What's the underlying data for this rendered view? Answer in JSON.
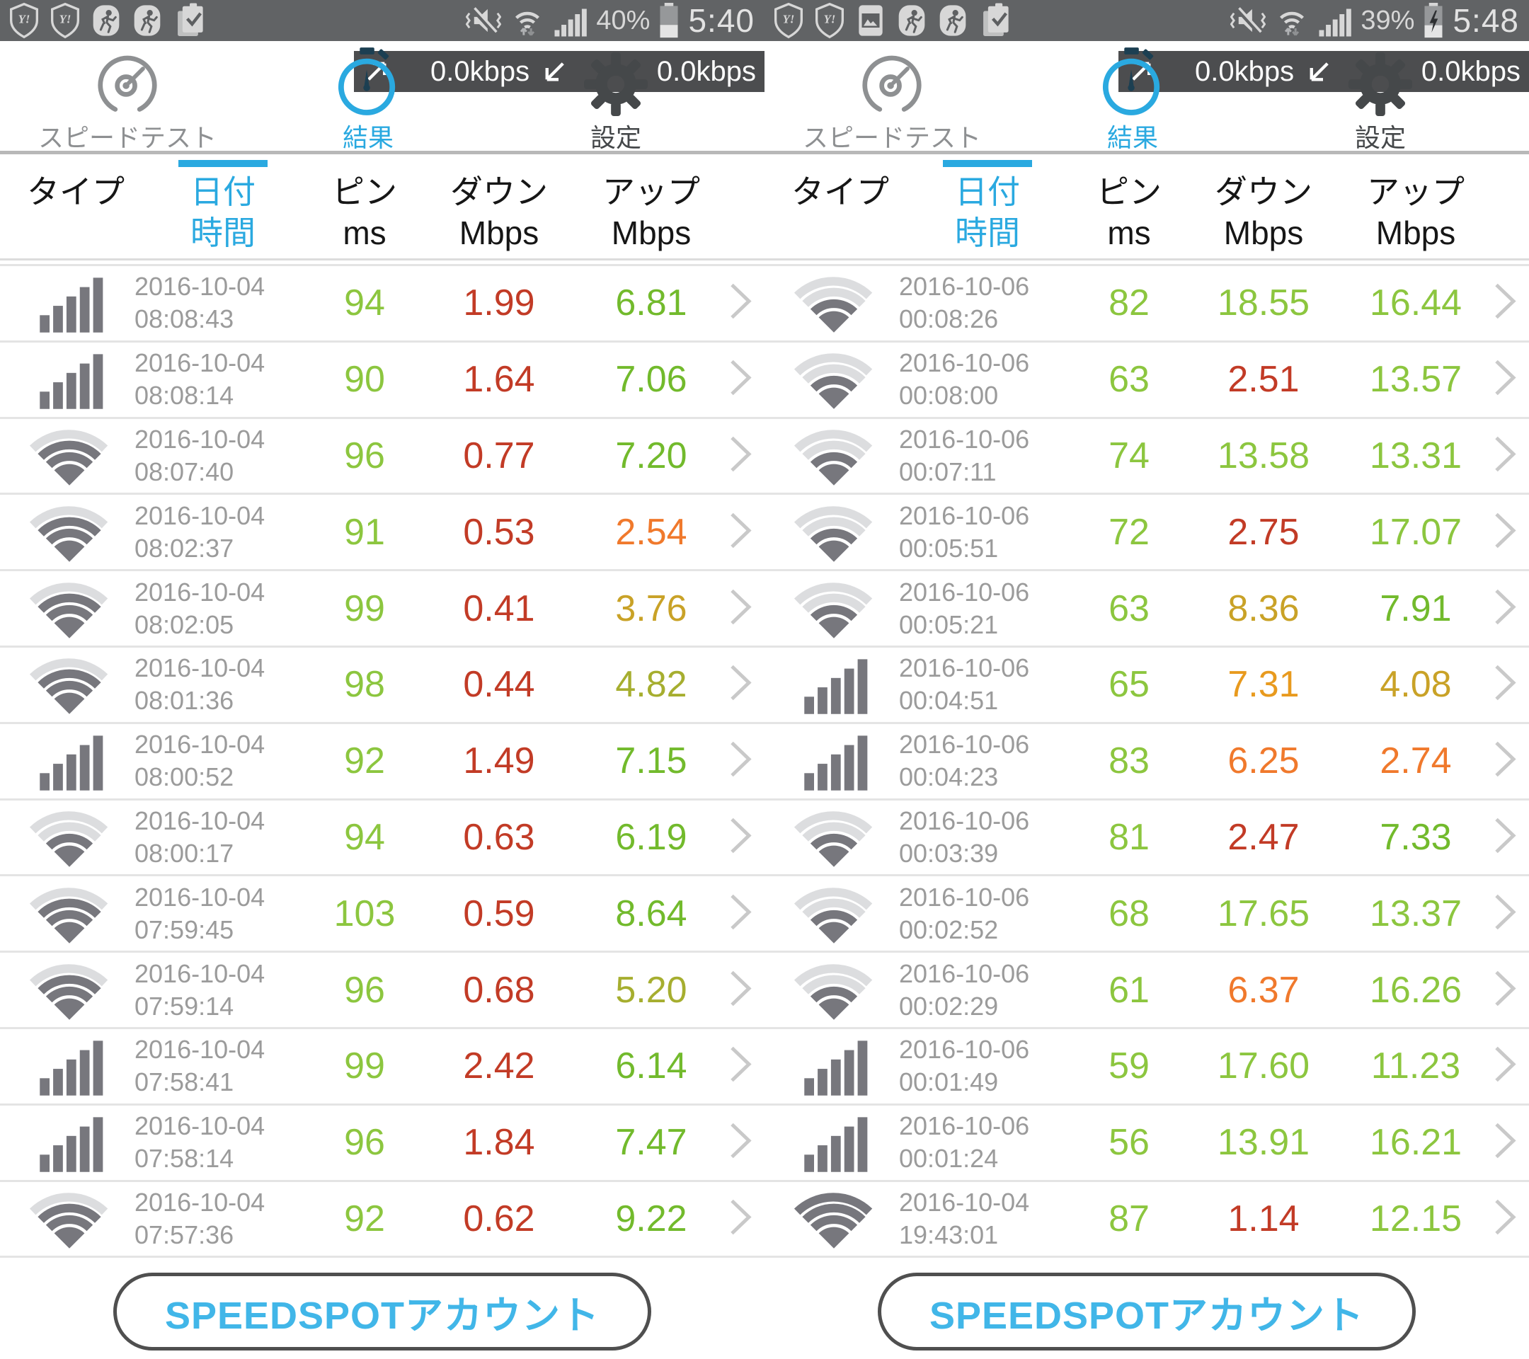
{
  "palette": {
    "red": "#c23b26",
    "orange": "#f0792c",
    "amber": "#e89a1e",
    "gold": "#c9a227",
    "olive": "#a6ae2f",
    "green": "#72ba2c",
    "lime": "#8cc63f",
    "blue": "#2aa9e0",
    "date_gray": "#9b9b9b",
    "icon_gray": "#77777d",
    "arc_light": "#dcdddf",
    "chevron_gray": "#c9c9c9",
    "statusbar_bg": "#616365",
    "overlay_bg": "#3e4042",
    "button_text": "#41b6e8"
  },
  "panels": [
    {
      "statusbar": {
        "left_icons": [
          "shield-y",
          "shield-y",
          "runner",
          "runner",
          "clipboard-check"
        ],
        "battery_pct": "40%",
        "battery_level": 0.4,
        "charging": false,
        "time": "5:40"
      },
      "tabs": [
        {
          "label": "スピードテスト",
          "active": false
        },
        {
          "label": "結果",
          "active": true
        },
        {
          "label": "設定",
          "active": false
        }
      ],
      "overlay": {
        "up": "0.0kbps",
        "down": "0.0kbps"
      },
      "columns": {
        "type": "タイプ",
        "date1": "日付",
        "date2": "時間",
        "ping1": "ピン",
        "ping2": "ms",
        "down1": "ダウン",
        "down2": "Mbps",
        "up1": "アップ",
        "up2": "Mbps"
      },
      "rows": [
        {
          "icon": "cell",
          "date": "2016-10-04",
          "time": "08:08:43",
          "ping": "94",
          "ping_color": "lime",
          "down": "1.99",
          "down_color": "red",
          "up": "6.81",
          "up_color": "green"
        },
        {
          "icon": "cell",
          "date": "2016-10-04",
          "time": "08:08:14",
          "ping": "90",
          "ping_color": "lime",
          "down": "1.64",
          "down_color": "red",
          "up": "7.06",
          "up_color": "green"
        },
        {
          "icon": "wifi",
          "level": 3,
          "date": "2016-10-04",
          "time": "08:07:40",
          "ping": "96",
          "ping_color": "lime",
          "down": "0.77",
          "down_color": "red",
          "up": "7.20",
          "up_color": "green"
        },
        {
          "icon": "wifi",
          "level": 3,
          "date": "2016-10-04",
          "time": "08:02:37",
          "ping": "91",
          "ping_color": "lime",
          "down": "0.53",
          "down_color": "red",
          "up": "2.54",
          "up_color": "orange"
        },
        {
          "icon": "wifi",
          "level": 3,
          "date": "2016-10-04",
          "time": "08:02:05",
          "ping": "99",
          "ping_color": "lime",
          "down": "0.41",
          "down_color": "red",
          "up": "3.76",
          "up_color": "gold"
        },
        {
          "icon": "wifi",
          "level": 3,
          "date": "2016-10-04",
          "time": "08:01:36",
          "ping": "98",
          "ping_color": "lime",
          "down": "0.44",
          "down_color": "red",
          "up": "4.82",
          "up_color": "olive"
        },
        {
          "icon": "cell",
          "date": "2016-10-04",
          "time": "08:00:52",
          "ping": "92",
          "ping_color": "lime",
          "down": "1.49",
          "down_color": "red",
          "up": "7.15",
          "up_color": "green"
        },
        {
          "icon": "wifi",
          "level": 2,
          "date": "2016-10-04",
          "time": "08:00:17",
          "ping": "94",
          "ping_color": "lime",
          "down": "0.63",
          "down_color": "red",
          "up": "6.19",
          "up_color": "green"
        },
        {
          "icon": "wifi",
          "level": 3,
          "date": "2016-10-04",
          "time": "07:59:45",
          "ping": "103",
          "ping_color": "lime",
          "down": "0.59",
          "down_color": "red",
          "up": "8.64",
          "up_color": "green"
        },
        {
          "icon": "wifi",
          "level": 3,
          "date": "2016-10-04",
          "time": "07:59:14",
          "ping": "96",
          "ping_color": "lime",
          "down": "0.68",
          "down_color": "red",
          "up": "5.20",
          "up_color": "olive"
        },
        {
          "icon": "cell",
          "date": "2016-10-04",
          "time": "07:58:41",
          "ping": "99",
          "ping_color": "lime",
          "down": "2.42",
          "down_color": "red",
          "up": "6.14",
          "up_color": "green"
        },
        {
          "icon": "cell",
          "date": "2016-10-04",
          "time": "07:58:14",
          "ping": "96",
          "ping_color": "lime",
          "down": "1.84",
          "down_color": "red",
          "up": "7.47",
          "up_color": "green"
        },
        {
          "icon": "wifi",
          "level": 3,
          "date": "2016-10-04",
          "time": "07:57:36",
          "ping": "92",
          "ping_color": "lime",
          "down": "0.62",
          "down_color": "red",
          "up": "9.22",
          "up_color": "green"
        }
      ],
      "account_button": "SPEEDSPOTアカウント"
    },
    {
      "statusbar": {
        "left_icons": [
          "shield-y",
          "shield-y",
          "photo",
          "runner",
          "runner",
          "clipboard-check"
        ],
        "battery_pct": "39%",
        "battery_level": 0.39,
        "charging": true,
        "time": "5:48"
      },
      "tabs": [
        {
          "label": "スピードテスト",
          "active": false
        },
        {
          "label": "結果",
          "active": true
        },
        {
          "label": "設定",
          "active": false
        }
      ],
      "overlay": {
        "up": "0.0kbps",
        "down": "0.0kbps"
      },
      "columns": {
        "type": "タイプ",
        "date1": "日付",
        "date2": "時間",
        "ping1": "ピン",
        "ping2": "ms",
        "down1": "ダウン",
        "down2": "Mbps",
        "up1": "アップ",
        "up2": "Mbps"
      },
      "rows": [
        {
          "icon": "wifi",
          "level": 2,
          "date": "2016-10-06",
          "time": "00:08:26",
          "ping": "82",
          "ping_color": "lime",
          "down": "18.55",
          "down_color": "lime",
          "up": "16.44",
          "up_color": "lime"
        },
        {
          "icon": "wifi",
          "level": 2,
          "date": "2016-10-06",
          "time": "00:08:00",
          "ping": "63",
          "ping_color": "lime",
          "down": "2.51",
          "down_color": "red",
          "up": "13.57",
          "up_color": "lime"
        },
        {
          "icon": "wifi",
          "level": 2,
          "date": "2016-10-06",
          "time": "00:07:11",
          "ping": "74",
          "ping_color": "lime",
          "down": "13.58",
          "down_color": "lime",
          "up": "13.31",
          "up_color": "lime"
        },
        {
          "icon": "wifi",
          "level": 2,
          "date": "2016-10-06",
          "time": "00:05:51",
          "ping": "72",
          "ping_color": "lime",
          "down": "2.75",
          "down_color": "red",
          "up": "17.07",
          "up_color": "lime"
        },
        {
          "icon": "wifi",
          "level": 2,
          "date": "2016-10-06",
          "time": "00:05:21",
          "ping": "63",
          "ping_color": "lime",
          "down": "8.36",
          "down_color": "gold",
          "up": "7.91",
          "up_color": "green"
        },
        {
          "icon": "cell",
          "date": "2016-10-06",
          "time": "00:04:51",
          "ping": "65",
          "ping_color": "lime",
          "down": "7.31",
          "down_color": "amber",
          "up": "4.08",
          "up_color": "gold"
        },
        {
          "icon": "cell",
          "date": "2016-10-06",
          "time": "00:04:23",
          "ping": "83",
          "ping_color": "lime",
          "down": "6.25",
          "down_color": "orange",
          "up": "2.74",
          "up_color": "orange"
        },
        {
          "icon": "wifi",
          "level": 2,
          "date": "2016-10-06",
          "time": "00:03:39",
          "ping": "81",
          "ping_color": "lime",
          "down": "2.47",
          "down_color": "red",
          "up": "7.33",
          "up_color": "green"
        },
        {
          "icon": "wifi",
          "level": 2,
          "date": "2016-10-06",
          "time": "00:02:52",
          "ping": "68",
          "ping_color": "lime",
          "down": "17.65",
          "down_color": "lime",
          "up": "13.37",
          "up_color": "lime"
        },
        {
          "icon": "wifi",
          "level": 2,
          "date": "2016-10-06",
          "time": "00:02:29",
          "ping": "61",
          "ping_color": "lime",
          "down": "6.37",
          "down_color": "orange",
          "up": "16.26",
          "up_color": "lime"
        },
        {
          "icon": "cell",
          "date": "2016-10-06",
          "time": "00:01:49",
          "ping": "59",
          "ping_color": "lime",
          "down": "17.60",
          "down_color": "lime",
          "up": "11.23",
          "up_color": "lime"
        },
        {
          "icon": "cell",
          "date": "2016-10-06",
          "time": "00:01:24",
          "ping": "56",
          "ping_color": "lime",
          "down": "13.91",
          "down_color": "lime",
          "up": "16.21",
          "up_color": "lime"
        },
        {
          "icon": "wifi",
          "level": 4,
          "date": "2016-10-04",
          "time": "19:43:01",
          "ping": "87",
          "ping_color": "lime",
          "down": "1.14",
          "down_color": "red",
          "up": "12.15",
          "up_color": "lime"
        }
      ],
      "account_button": "SPEEDSPOTアカウント"
    }
  ]
}
